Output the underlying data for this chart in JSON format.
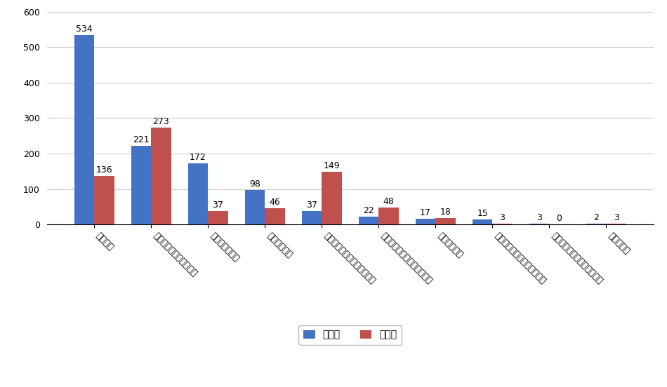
{
  "categories": [
    "南宁旅游",
    "柳州市文化广电和旅游局",
    "防城港文化旅游",
    "北海旅游文体",
    "贵港市文化广电体育和旅游局",
    "玉林市文化广电体育和旅游局",
    "崇左文化旅游",
    "钦州市文化广电体育和旅游局",
    "梧州市文化广电体育和旅游局",
    "来宾文旅云"
  ],
  "zhuanfa": [
    534,
    221,
    172,
    98,
    37,
    22,
    17,
    15,
    3,
    2
  ],
  "pinglun": [
    136,
    273,
    37,
    46,
    149,
    48,
    18,
    3,
    0,
    3
  ],
  "bar_color_zhuanfa": "#4472C4",
  "bar_color_pinglun": "#C0504D",
  "ylim": [
    0,
    600
  ],
  "yticks": [
    0,
    100,
    200,
    300,
    400,
    500,
    600
  ],
  "legend_labels": [
    "转发数",
    "评论数"
  ],
  "background_color": "#FFFFFF",
  "grid_color": "#CCCCCC",
  "bar_width": 0.35,
  "label_fontsize": 9,
  "tick_fontsize": 9,
  "legend_fontsize": 10
}
